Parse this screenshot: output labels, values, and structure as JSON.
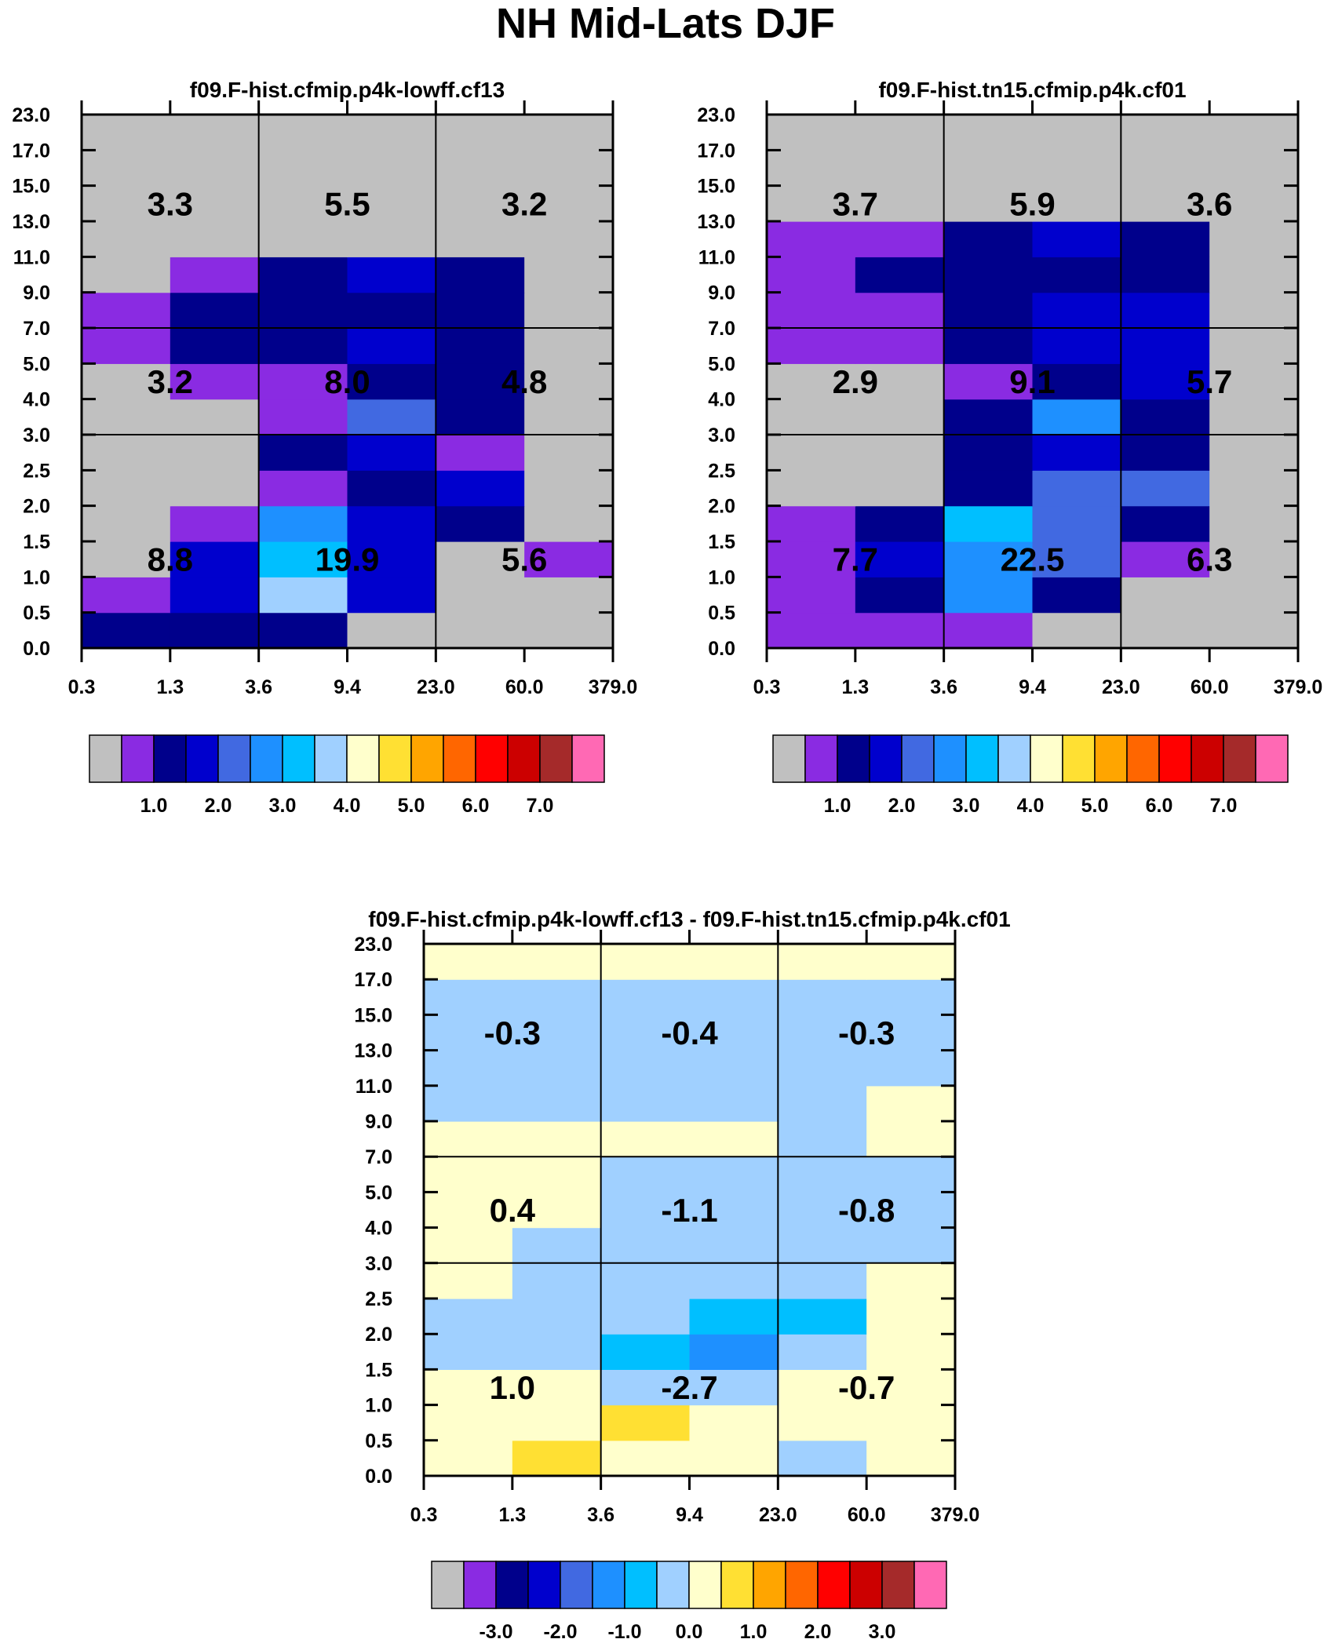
{
  "title": "NH Mid-Lats DJF",
  "colors": {
    "grid_line": "#000000",
    "frame": "#000000",
    "text": "#000000",
    "missing": "#c0c0c0"
  },
  "chart_data": [
    {
      "type": "heatmap",
      "title": "f09.F-hist.cfmip.p4k-lowff.cf13",
      "x_tick_labels": [
        "0.3",
        "1.3",
        "3.6",
        "9.4",
        "23.0",
        "60.0",
        "379.0"
      ],
      "y_tick_labels": [
        "0.0",
        "0.5",
        "1.0",
        "1.5",
        "2.0",
        "2.5",
        "3.0",
        "4.0",
        "5.0",
        "7.0",
        "9.0",
        "11.0",
        "13.0",
        "15.0",
        "17.0",
        "23.0"
      ],
      "cells_note": "rows bottom-to-top (15 bins), columns left-to-right (6 bins); value = colorbar box index",
      "cells": [
        [
          2,
          2,
          2,
          0,
          0,
          0
        ],
        [
          1,
          3,
          7,
          3,
          0,
          0
        ],
        [
          0,
          3,
          6,
          3,
          0,
          1
        ],
        [
          0,
          1,
          5,
          3,
          2,
          0
        ],
        [
          0,
          0,
          1,
          2,
          3,
          0
        ],
        [
          0,
          0,
          2,
          3,
          1,
          0
        ],
        [
          0,
          0,
          1,
          4,
          2,
          0
        ],
        [
          0,
          1,
          1,
          2,
          2,
          0
        ],
        [
          1,
          2,
          2,
          3,
          2,
          0
        ],
        [
          1,
          2,
          2,
          2,
          2,
          0
        ],
        [
          0,
          1,
          2,
          3,
          2,
          0
        ],
        [
          0,
          0,
          0,
          0,
          0,
          0
        ],
        [
          0,
          0,
          0,
          0,
          0,
          0
        ],
        [
          0,
          0,
          0,
          0,
          0,
          0
        ],
        [
          0,
          0,
          0,
          0,
          0,
          0
        ]
      ],
      "summary_values": [
        [
          "3.3",
          "5.5",
          "3.2"
        ],
        [
          "3.2",
          "8.0",
          "4.8"
        ],
        [
          "8.8",
          "19.9",
          "5.6"
        ]
      ],
      "colorbar": {
        "colors": [
          "#c0c0c0",
          "#8a2be2",
          "#00008b",
          "#0000cd",
          "#4169e1",
          "#1e90ff",
          "#00bfff",
          "#a0d0ff",
          "#ffffcc",
          "#ffe033",
          "#ffa500",
          "#ff6600",
          "#ff0000",
          "#cc0000",
          "#a52a2a",
          "#ff69b4"
        ],
        "labels": [
          "1.0",
          "2.0",
          "3.0",
          "4.0",
          "5.0",
          "6.0",
          "7.0"
        ],
        "label_start_box": 2
      }
    },
    {
      "type": "heatmap",
      "title": "f09.F-hist.tn15.cfmip.p4k.cf01",
      "x_tick_labels": [
        "0.3",
        "1.3",
        "3.6",
        "9.4",
        "23.0",
        "60.0",
        "379.0"
      ],
      "y_tick_labels": [
        "0.0",
        "0.5",
        "1.0",
        "1.5",
        "2.0",
        "2.5",
        "3.0",
        "4.0",
        "5.0",
        "7.0",
        "9.0",
        "11.0",
        "13.0",
        "15.0",
        "17.0",
        "23.0"
      ],
      "cells_note": "rows bottom-to-top (15 bins), columns left-to-right (6 bins); value = colorbar box index",
      "cells": [
        [
          1,
          1,
          1,
          0,
          0,
          0
        ],
        [
          1,
          2,
          5,
          2,
          0,
          0
        ],
        [
          1,
          3,
          5,
          4,
          1,
          0
        ],
        [
          1,
          2,
          6,
          4,
          2,
          0
        ],
        [
          0,
          0,
          2,
          4,
          4,
          0
        ],
        [
          0,
          0,
          2,
          3,
          2,
          0
        ],
        [
          0,
          0,
          2,
          5,
          2,
          0
        ],
        [
          0,
          0,
          1,
          2,
          3,
          0
        ],
        [
          1,
          1,
          2,
          3,
          3,
          0
        ],
        [
          1,
          1,
          2,
          3,
          3,
          0
        ],
        [
          1,
          2,
          2,
          2,
          2,
          0
        ],
        [
          1,
          1,
          2,
          3,
          2,
          0
        ],
        [
          0,
          0,
          0,
          0,
          0,
          0
        ],
        [
          0,
          0,
          0,
          0,
          0,
          0
        ],
        [
          0,
          0,
          0,
          0,
          0,
          0
        ]
      ],
      "summary_values": [
        [
          "3.7",
          "5.9",
          "3.6"
        ],
        [
          "2.9",
          "9.1",
          "5.7"
        ],
        [
          "7.7",
          "22.5",
          "6.3"
        ]
      ],
      "colorbar": {
        "colors": [
          "#c0c0c0",
          "#8a2be2",
          "#00008b",
          "#0000cd",
          "#4169e1",
          "#1e90ff",
          "#00bfff",
          "#a0d0ff",
          "#ffffcc",
          "#ffe033",
          "#ffa500",
          "#ff6600",
          "#ff0000",
          "#cc0000",
          "#a52a2a",
          "#ff69b4"
        ],
        "labels": [
          "1.0",
          "2.0",
          "3.0",
          "4.0",
          "5.0",
          "6.0",
          "7.0"
        ],
        "label_start_box": 2
      }
    },
    {
      "type": "heatmap",
      "title": "f09.F-hist.cfmip.p4k-lowff.cf13 - f09.F-hist.tn15.cfmip.p4k.cf01",
      "x_tick_labels": [
        "0.3",
        "1.3",
        "3.6",
        "9.4",
        "23.0",
        "60.0",
        "379.0"
      ],
      "y_tick_labels": [
        "0.0",
        "0.5",
        "1.0",
        "1.5",
        "2.0",
        "2.5",
        "3.0",
        "4.0",
        "5.0",
        "7.0",
        "9.0",
        "11.0",
        "13.0",
        "15.0",
        "17.0",
        "23.0"
      ],
      "cells_note": "rows bottom-to-top (15 bins), columns left-to-right (6 bins); value = colorbar box index",
      "cells": [
        [
          8,
          9,
          8,
          8,
          7,
          8
        ],
        [
          8,
          8,
          9,
          8,
          8,
          8
        ],
        [
          8,
          8,
          7,
          7,
          8,
          8
        ],
        [
          7,
          7,
          6,
          5,
          7,
          8
        ],
        [
          7,
          7,
          7,
          6,
          6,
          8
        ],
        [
          8,
          7,
          7,
          7,
          7,
          8
        ],
        [
          8,
          7,
          7,
          7,
          7,
          7
        ],
        [
          8,
          8,
          7,
          7,
          7,
          7
        ],
        [
          8,
          8,
          7,
          7,
          7,
          7
        ],
        [
          8,
          8,
          8,
          8,
          7,
          8
        ],
        [
          7,
          7,
          7,
          7,
          7,
          8
        ],
        [
          7,
          7,
          7,
          7,
          7,
          7
        ],
        [
          7,
          7,
          7,
          7,
          7,
          7
        ],
        [
          7,
          7,
          7,
          7,
          7,
          7
        ],
        [
          8,
          8,
          8,
          8,
          8,
          8
        ]
      ],
      "summary_values": [
        [
          "-0.3",
          "-0.4",
          "-0.3"
        ],
        [
          "0.4",
          "-1.1",
          "-0.8"
        ],
        [
          "1.0",
          "-2.7",
          "-0.7"
        ]
      ],
      "colorbar": {
        "colors": [
          "#c0c0c0",
          "#8a2be2",
          "#00008b",
          "#0000cd",
          "#4169e1",
          "#1e90ff",
          "#00bfff",
          "#a0d0ff",
          "#ffffcc",
          "#ffe033",
          "#ffa500",
          "#ff6600",
          "#ff0000",
          "#cc0000",
          "#a52a2a",
          "#ff69b4"
        ],
        "labels": [
          "-3.0",
          "-2.0",
          "-1.0",
          "0.0",
          "1.0",
          "2.0",
          "3.0"
        ],
        "label_start_box": 2
      }
    }
  ]
}
